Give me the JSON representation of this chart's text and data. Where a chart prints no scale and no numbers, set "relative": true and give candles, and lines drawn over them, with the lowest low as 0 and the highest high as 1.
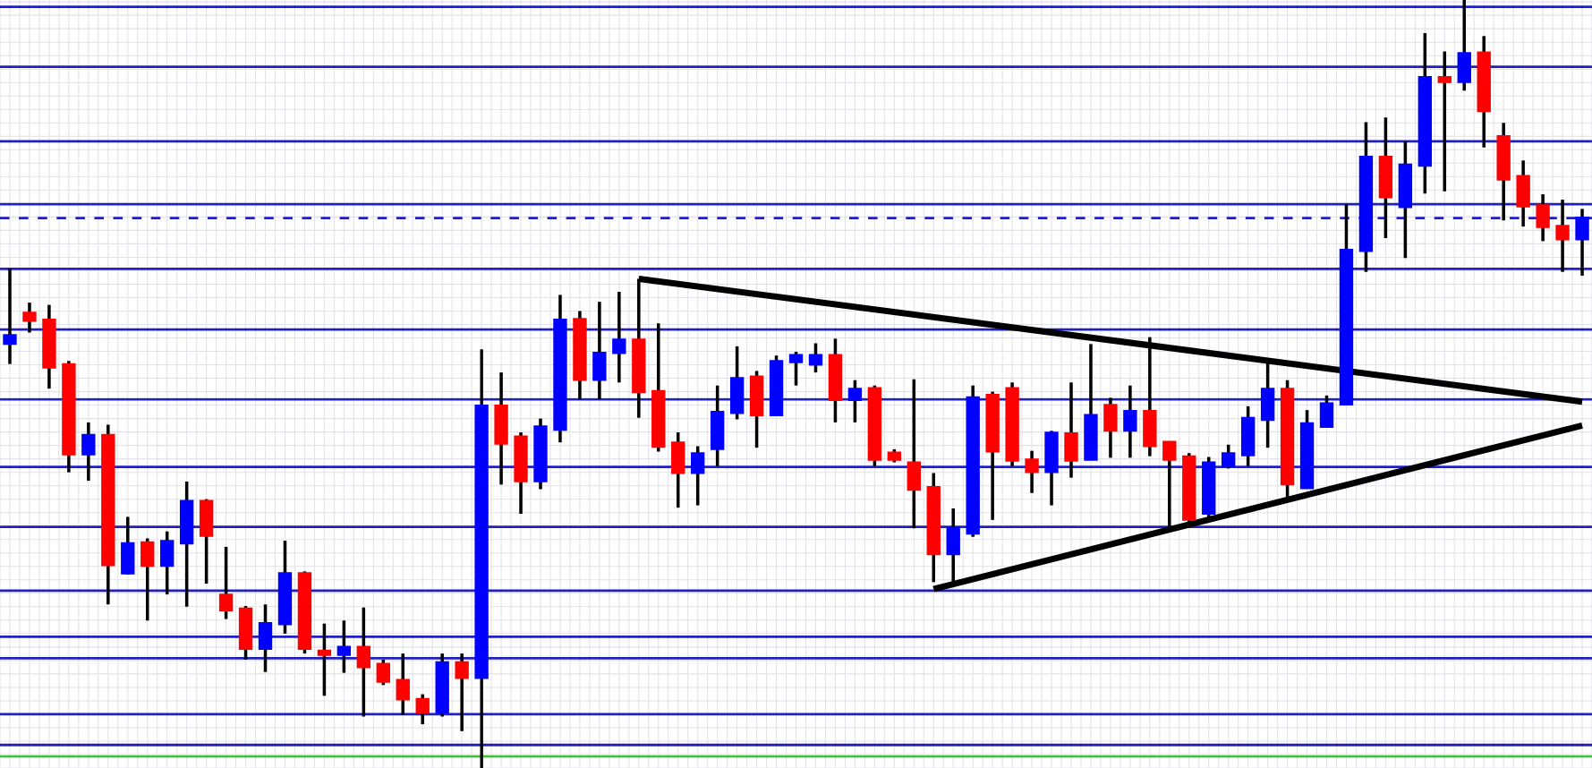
{
  "chart_data": {
    "type": "candlestick",
    "relative": true,
    "grid": true,
    "categories": [
      null,
      null,
      null,
      null,
      null,
      null,
      null,
      null,
      null,
      null,
      null,
      null,
      null,
      null,
      null,
      null,
      null,
      null,
      null,
      null,
      null,
      null,
      null,
      null,
      null,
      null,
      null,
      null,
      null,
      null,
      null,
      null,
      null,
      null,
      null,
      null,
      null,
      null,
      null,
      null,
      null,
      null,
      null,
      null,
      null,
      null,
      null,
      null,
      null,
      null,
      null,
      null,
      null,
      null,
      null,
      null,
      null,
      null,
      null,
      null,
      null,
      null,
      null,
      null,
      null,
      null,
      null,
      null,
      null,
      null,
      null,
      null,
      null,
      null,
      null,
      null,
      null,
      null,
      null,
      null,
      null
    ],
    "ohlc": [
      [
        0.553,
        0.65,
        0.526,
        0.563
      ],
      [
        0.592,
        0.606,
        0.567,
        0.583
      ],
      [
        0.583,
        0.603,
        0.494,
        0.522
      ],
      [
        0.525,
        0.53,
        0.385,
        0.409
      ],
      [
        0.409,
        0.45,
        0.374,
        0.433
      ],
      [
        0.433,
        0.447,
        0.213,
        0.265
      ],
      [
        0.254,
        0.327,
        0.252,
        0.292
      ],
      [
        0.293,
        0.299,
        0.192,
        0.264
      ],
      [
        0.264,
        0.308,
        0.226,
        0.295
      ],
      [
        0.293,
        0.373,
        0.21,
        0.347
      ],
      [
        0.347,
        0.35,
        0.24,
        0.303
      ],
      [
        0.225,
        0.288,
        0.194,
        0.206
      ],
      [
        0.207,
        0.211,
        0.141,
        0.156
      ],
      [
        0.156,
        0.213,
        0.125,
        0.188
      ],
      [
        0.188,
        0.296,
        0.175,
        0.253
      ],
      [
        0.253,
        0.256,
        0.149,
        0.156
      ],
      [
        0.152,
        0.188,
        0.094,
        0.148
      ],
      [
        0.148,
        0.192,
        0.124,
        0.157
      ],
      [
        0.157,
        0.209,
        0.067,
        0.132
      ],
      [
        0.135,
        0.141,
        0.108,
        0.113
      ],
      [
        0.114,
        0.149,
        0.069,
        0.09
      ],
      [
        0.089,
        0.096,
        0.057,
        0.073
      ],
      [
        0.073,
        0.149,
        0.067,
        0.137
      ],
      [
        0.137,
        0.149,
        0.048,
        0.118
      ],
      [
        0.118,
        0.545,
        0,
        0.471
      ],
      [
        0.471,
        0.515,
        0.369,
        0.423
      ],
      [
        0.431,
        0.437,
        0.331,
        0.374
      ],
      [
        0.374,
        0.455,
        0.363,
        0.444
      ],
      [
        0.441,
        0.616,
        0.424,
        0.583
      ],
      [
        0.584,
        0.595,
        0.48,
        0.506
      ],
      [
        0.506,
        0.607,
        0.48,
        0.54
      ],
      [
        0.541,
        0.62,
        0.502,
        0.557
      ],
      [
        0.557,
        0.637,
        0.456,
        0.49
      ],
      [
        0.49,
        0.579,
        0.412,
        0.419
      ],
      [
        0.423,
        0.437,
        0.339,
        0.385
      ],
      [
        0.385,
        0.419,
        0.342,
        0.409
      ],
      [
        0.416,
        0.498,
        0.393,
        0.463
      ],
      [
        0.463,
        0.549,
        0.454,
        0.507
      ],
      [
        0.509,
        0.517,
        0.417,
        0.46
      ],
      [
        0.46,
        0.537,
        0.46,
        0.529
      ],
      [
        0.529,
        0.542,
        0.498,
        0.537
      ],
      [
        0.526,
        0.553,
        0.515,
        0.537
      ],
      [
        0.537,
        0.559,
        0.45,
        0.48
      ],
      [
        0.48,
        0.505,
        0.45,
        0.493
      ],
      [
        0.494,
        0.498,
        0.393,
        0.402
      ],
      [
        0.41,
        0.415,
        0.398,
        0.402
      ],
      [
        0.397,
        0.506,
        0.312,
        0.363
      ],
      [
        0.365,
        0.384,
        0.242,
        0.279
      ],
      [
        0.279,
        0.338,
        0.237,
        0.312
      ],
      [
        0.306,
        0.498,
        0.301,
        0.482
      ],
      [
        0.485,
        0.49,
        0.323,
        0.413
      ],
      [
        0.494,
        0.502,
        0.393,
        0.401
      ],
      [
        0.401,
        0.413,
        0.358,
        0.386
      ],
      [
        0.386,
        0.439,
        0.342,
        0.436
      ],
      [
        0.435,
        0.502,
        0.378,
        0.401
      ],
      [
        0.402,
        0.552,
        0.401,
        0.459
      ],
      [
        0.472,
        0.482,
        0.404,
        0.44
      ],
      [
        0.44,
        0.498,
        0.404,
        0.464
      ],
      [
        0.464,
        0.561,
        0.406,
        0.42
      ],
      [
        0.424,
        0.424,
        0.314,
        0.402
      ],
      [
        0.405,
        0.41,
        0.32,
        0.324
      ],
      [
        0.332,
        0.405,
        0.323,
        0.397
      ],
      [
        0.394,
        0.421,
        0.39,
        0.409
      ],
      [
        0.408,
        0.471,
        0.393,
        0.455
      ],
      [
        0.454,
        0.53,
        0.417,
        0.493
      ],
      [
        0.493,
        0.505,
        0.351,
        0.37
      ],
      [
        0.365,
        0.466,
        0.365,
        0.448
      ],
      [
        0.445,
        0.485,
        0.443,
        0.474
      ],
      [
        0.474,
        0.734,
        0.472,
        0.674
      ],
      [
        0.674,
        0.841,
        0.646,
        0.795
      ],
      [
        0.795,
        0.847,
        0.69,
        0.744
      ],
      [
        0.731,
        0.816,
        0.664,
        0.785
      ],
      [
        0.785,
        0.957,
        0.748,
        0.899
      ],
      [
        0.899,
        0.933,
        0.751,
        0.894
      ],
      [
        0.894,
        1,
        0.882,
        0.93
      ],
      [
        0.931,
        0.953,
        0.808,
        0.856
      ],
      [
        0.822,
        0.84,
        0.713,
        0.767
      ],
      [
        0.77,
        0.791,
        0.705,
        0.732
      ],
      [
        0.732,
        0.747,
        0.686,
        0.705
      ],
      [
        0.705,
        0.74,
        0.646,
        0.689
      ],
      [
        0.689,
        0.728,
        0.641,
        0.716
      ]
    ],
    "colors": [
      "#0000ff",
      "#ff0000",
      "#ff0000",
      "#ff0000",
      "#0000ff",
      "#ff0000",
      "#0000ff",
      "#ff0000",
      "#0000ff",
      "#0000ff",
      "#ff0000",
      "#ff0000",
      "#ff0000",
      "#0000ff",
      "#0000ff",
      "#ff0000",
      "#ff0000",
      "#0000ff",
      "#ff0000",
      "#ff0000",
      "#ff0000",
      "#ff0000",
      "#0000ff",
      "#ff0000",
      "#0000ff",
      "#ff0000",
      "#ff0000",
      "#0000ff",
      "#0000ff",
      "#ff0000",
      "#0000ff",
      "#0000ff",
      "#ff0000",
      "#ff0000",
      "#ff0000",
      "#0000ff",
      "#0000ff",
      "#0000ff",
      "#ff0000",
      "#0000ff",
      "#0000ff",
      "#0000ff",
      "#ff0000",
      "#0000ff",
      "#ff0000",
      "#ff0000",
      "#ff0000",
      "#ff0000",
      "#0000ff",
      "#0000ff",
      "#ff0000",
      "#ff0000",
      "#ff0000",
      "#0000ff",
      "#ff0000",
      "#0000ff",
      "#ff0000",
      "#0000ff",
      "#ff0000",
      "#ff0000",
      "#ff0000",
      "#0000ff",
      "#0000ff",
      "#0000ff",
      "#0000ff",
      "#ff0000",
      "#0000ff",
      "#0000ff",
      "#0000ff",
      "#0000ff",
      "#ff0000",
      "#0000ff",
      "#0000ff",
      "#ff0000",
      "#0000ff",
      "#ff0000",
      "#ff0000",
      "#ff0000",
      "#ff0000",
      "#ff0000",
      "#0000ff"
    ],
    "series": [
      {
        "type": "line",
        "color": "#000000",
        "values": [
          null,
          null,
          null,
          null,
          null,
          null,
          null,
          null,
          null,
          null,
          null,
          null,
          null,
          null,
          null,
          null,
          null,
          null,
          null,
          null,
          null,
          null,
          null,
          null,
          null,
          null,
          null,
          null,
          null,
          null,
          null,
          null,
          0.637,
          null,
          null,
          null,
          null,
          null,
          null,
          null,
          null,
          null,
          null,
          null,
          null,
          null,
          null,
          null,
          null,
          null,
          null,
          null,
          null,
          null,
          null,
          null,
          null,
          null,
          null,
          null,
          null,
          null,
          null,
          null,
          null,
          null,
          null,
          null,
          null,
          null,
          null,
          null,
          null,
          null,
          null,
          null,
          null,
          null,
          null,
          null,
          0.477
        ]
      },
      {
        "type": "line",
        "color": "#000000",
        "values": [
          null,
          null,
          null,
          null,
          null,
          null,
          null,
          null,
          null,
          null,
          null,
          null,
          null,
          null,
          null,
          null,
          null,
          null,
          null,
          null,
          null,
          null,
          null,
          null,
          null,
          null,
          null,
          null,
          null,
          null,
          null,
          null,
          null,
          null,
          null,
          null,
          null,
          null,
          null,
          null,
          null,
          null,
          null,
          null,
          null,
          null,
          null,
          0.233,
          null,
          null,
          null,
          null,
          null,
          null,
          null,
          null,
          null,
          null,
          null,
          null,
          null,
          null,
          null,
          null,
          null,
          null,
          null,
          null,
          null,
          null,
          null,
          null,
          null,
          null,
          null,
          null,
          null,
          null,
          null,
          null,
          0.446
        ]
      }
    ],
    "ref_lines": [
      {
        "axis": "y",
        "value": 0.991,
        "color": "#2020c0"
      },
      {
        "axis": "y",
        "value": 0.913,
        "color": "#2020c0"
      },
      {
        "axis": "y",
        "value": 0.816,
        "color": "#2020c0"
      },
      {
        "axis": "y",
        "value": 0.734,
        "color": "#2020c0"
      },
      {
        "axis": "y",
        "value": 0.716,
        "color": "#2020c0",
        "line_style": "dashed"
      },
      {
        "axis": "y",
        "value": 0.65,
        "color": "#2020c0"
      },
      {
        "axis": "y",
        "value": 0.571,
        "color": "#2020c0"
      },
      {
        "axis": "y",
        "value": 0.48,
        "color": "#2020c0"
      },
      {
        "axis": "y",
        "value": 0.392,
        "color": "#2020c0"
      },
      {
        "axis": "y",
        "value": 0.314,
        "color": "#2020c0"
      },
      {
        "axis": "y",
        "value": 0.231,
        "color": "#2020c0"
      },
      {
        "axis": "y",
        "value": 0.171,
        "color": "#2020c0"
      },
      {
        "axis": "y",
        "value": 0.143,
        "color": "#2020c0"
      },
      {
        "axis": "y",
        "value": 0.07,
        "color": "#2020c0"
      },
      {
        "axis": "y",
        "value": 0.03,
        "color": "#2020c0"
      },
      {
        "axis": "y",
        "value": 0.015,
        "color": "#40c040"
      }
    ]
  }
}
